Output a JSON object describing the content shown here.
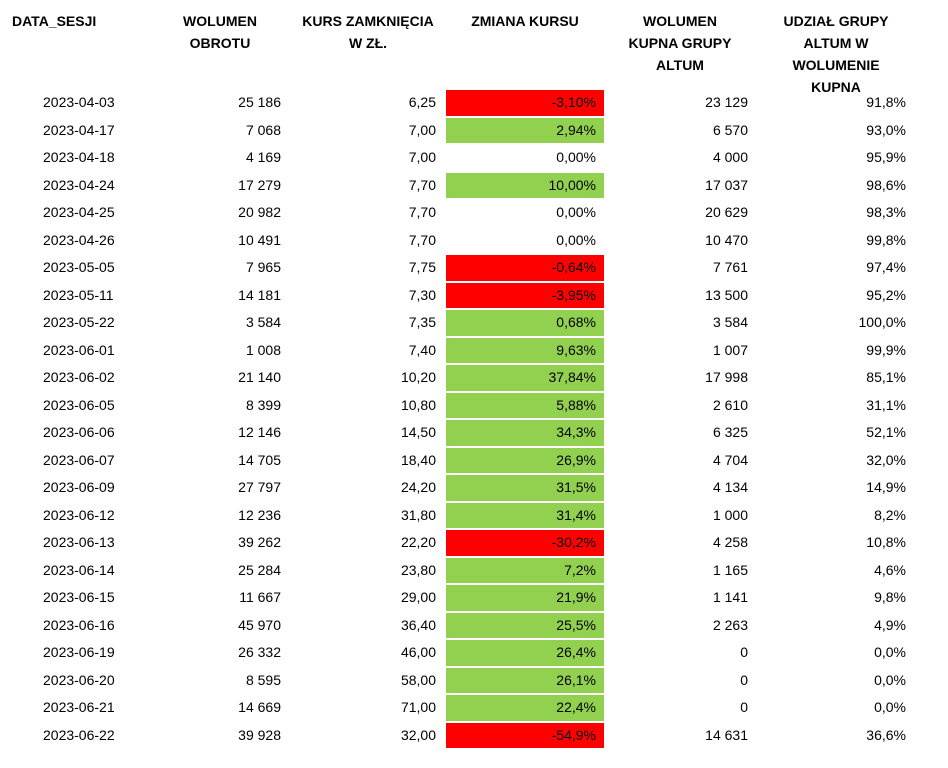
{
  "headers": {
    "date": "DATA_SESJI",
    "volume_line1": "WOLUMEN",
    "volume_line2": "OBROTU",
    "price_line1": "KURS ZAMKNIĘCIA",
    "price_line2": "W ZŁ.",
    "change": "ZMIANA KURSU",
    "buy_line1": "WOLUMEN",
    "buy_line2": "KUPNA GRUPY",
    "buy_line3": "ALTUM",
    "share_line1": "UDZIAŁ GRUPY",
    "share_line2": "ALTUM W",
    "share_line3": "WOLUMENIE",
    "share_line4": "KUPNA"
  },
  "colors": {
    "positive": "#92d050",
    "negative": "#ff0000",
    "neutral": "#ffffff"
  },
  "rows": [
    {
      "date": "2023-04-03",
      "volume": "25 186",
      "price": "6,25",
      "change": "-3,10%",
      "dir": "negative",
      "buy_volume": "23 129",
      "share": "91,8%"
    },
    {
      "date": "2023-04-17",
      "volume": "7 068",
      "price": "7,00",
      "change": "2,94%",
      "dir": "positive",
      "buy_volume": "6 570",
      "share": "93,0%"
    },
    {
      "date": "2023-04-18",
      "volume": "4 169",
      "price": "7,00",
      "change": "0,00%",
      "dir": "neutral",
      "buy_volume": "4 000",
      "share": "95,9%"
    },
    {
      "date": "2023-04-24",
      "volume": "17 279",
      "price": "7,70",
      "change": "10,00%",
      "dir": "positive",
      "buy_volume": "17 037",
      "share": "98,6%"
    },
    {
      "date": "2023-04-25",
      "volume": "20 982",
      "price": "7,70",
      "change": "0,00%",
      "dir": "neutral",
      "buy_volume": "20 629",
      "share": "98,3%"
    },
    {
      "date": "2023-04-26",
      "volume": "10 491",
      "price": "7,70",
      "change": "0,00%",
      "dir": "neutral",
      "buy_volume": "10 470",
      "share": "99,8%"
    },
    {
      "date": "2023-05-05",
      "volume": "7 965",
      "price": "7,75",
      "change": "-0,64%",
      "dir": "negative",
      "buy_volume": "7 761",
      "share": "97,4%"
    },
    {
      "date": "2023-05-11",
      "volume": "14 181",
      "price": "7,30",
      "change": "-3,95%",
      "dir": "negative",
      "buy_volume": "13 500",
      "share": "95,2%"
    },
    {
      "date": "2023-05-22",
      "volume": "3 584",
      "price": "7,35",
      "change": "0,68%",
      "dir": "positive",
      "buy_volume": "3 584",
      "share": "100,0%"
    },
    {
      "date": "2023-06-01",
      "volume": "1 008",
      "price": "7,40",
      "change": "9,63%",
      "dir": "positive",
      "buy_volume": "1 007",
      "share": "99,9%"
    },
    {
      "date": "2023-06-02",
      "volume": "21 140",
      "price": "10,20",
      "change": "37,84%",
      "dir": "positive",
      "buy_volume": "17 998",
      "share": "85,1%"
    },
    {
      "date": "2023-06-05",
      "volume": "8 399",
      "price": "10,80",
      "change": "5,88%",
      "dir": "positive",
      "buy_volume": "2 610",
      "share": "31,1%"
    },
    {
      "date": "2023-06-06",
      "volume": "12 146",
      "price": "14,50",
      "change": "34,3%",
      "dir": "positive",
      "buy_volume": "6 325",
      "share": "52,1%"
    },
    {
      "date": "2023-06-07",
      "volume": "14 705",
      "price": "18,40",
      "change": "26,9%",
      "dir": "positive",
      "buy_volume": "4 704",
      "share": "32,0%"
    },
    {
      "date": "2023-06-09",
      "volume": "27 797",
      "price": "24,20",
      "change": "31,5%",
      "dir": "positive",
      "buy_volume": "4 134",
      "share": "14,9%"
    },
    {
      "date": "2023-06-12",
      "volume": "12 236",
      "price": "31,80",
      "change": "31,4%",
      "dir": "positive",
      "buy_volume": "1 000",
      "share": "8,2%"
    },
    {
      "date": "2023-06-13",
      "volume": "39 262",
      "price": "22,20",
      "change": "-30,2%",
      "dir": "negative",
      "buy_volume": "4 258",
      "share": "10,8%"
    },
    {
      "date": "2023-06-14",
      "volume": "25 284",
      "price": "23,80",
      "change": "7,2%",
      "dir": "positive",
      "buy_volume": "1 165",
      "share": "4,6%"
    },
    {
      "date": "2023-06-15",
      "volume": "11 667",
      "price": "29,00",
      "change": "21,9%",
      "dir": "positive",
      "buy_volume": "1 141",
      "share": "9,8%"
    },
    {
      "date": "2023-06-16",
      "volume": "45 970",
      "price": "36,40",
      "change": "25,5%",
      "dir": "positive",
      "buy_volume": "2 263",
      "share": "4,9%"
    },
    {
      "date": "2023-06-19",
      "volume": "26 332",
      "price": "46,00",
      "change": "26,4%",
      "dir": "positive",
      "buy_volume": "0",
      "share": "0,0%"
    },
    {
      "date": "2023-06-20",
      "volume": "8 595",
      "price": "58,00",
      "change": "26,1%",
      "dir": "positive",
      "buy_volume": "0",
      "share": "0,0%"
    },
    {
      "date": "2023-06-21",
      "volume": "14 669",
      "price": "71,00",
      "change": "22,4%",
      "dir": "positive",
      "buy_volume": "0",
      "share": "0,0%"
    },
    {
      "date": "2023-06-22",
      "volume": "39 928",
      "price": "32,00",
      "change": "-54,9%",
      "dir": "negative",
      "buy_volume": "14 631",
      "share": "36,6%"
    }
  ]
}
